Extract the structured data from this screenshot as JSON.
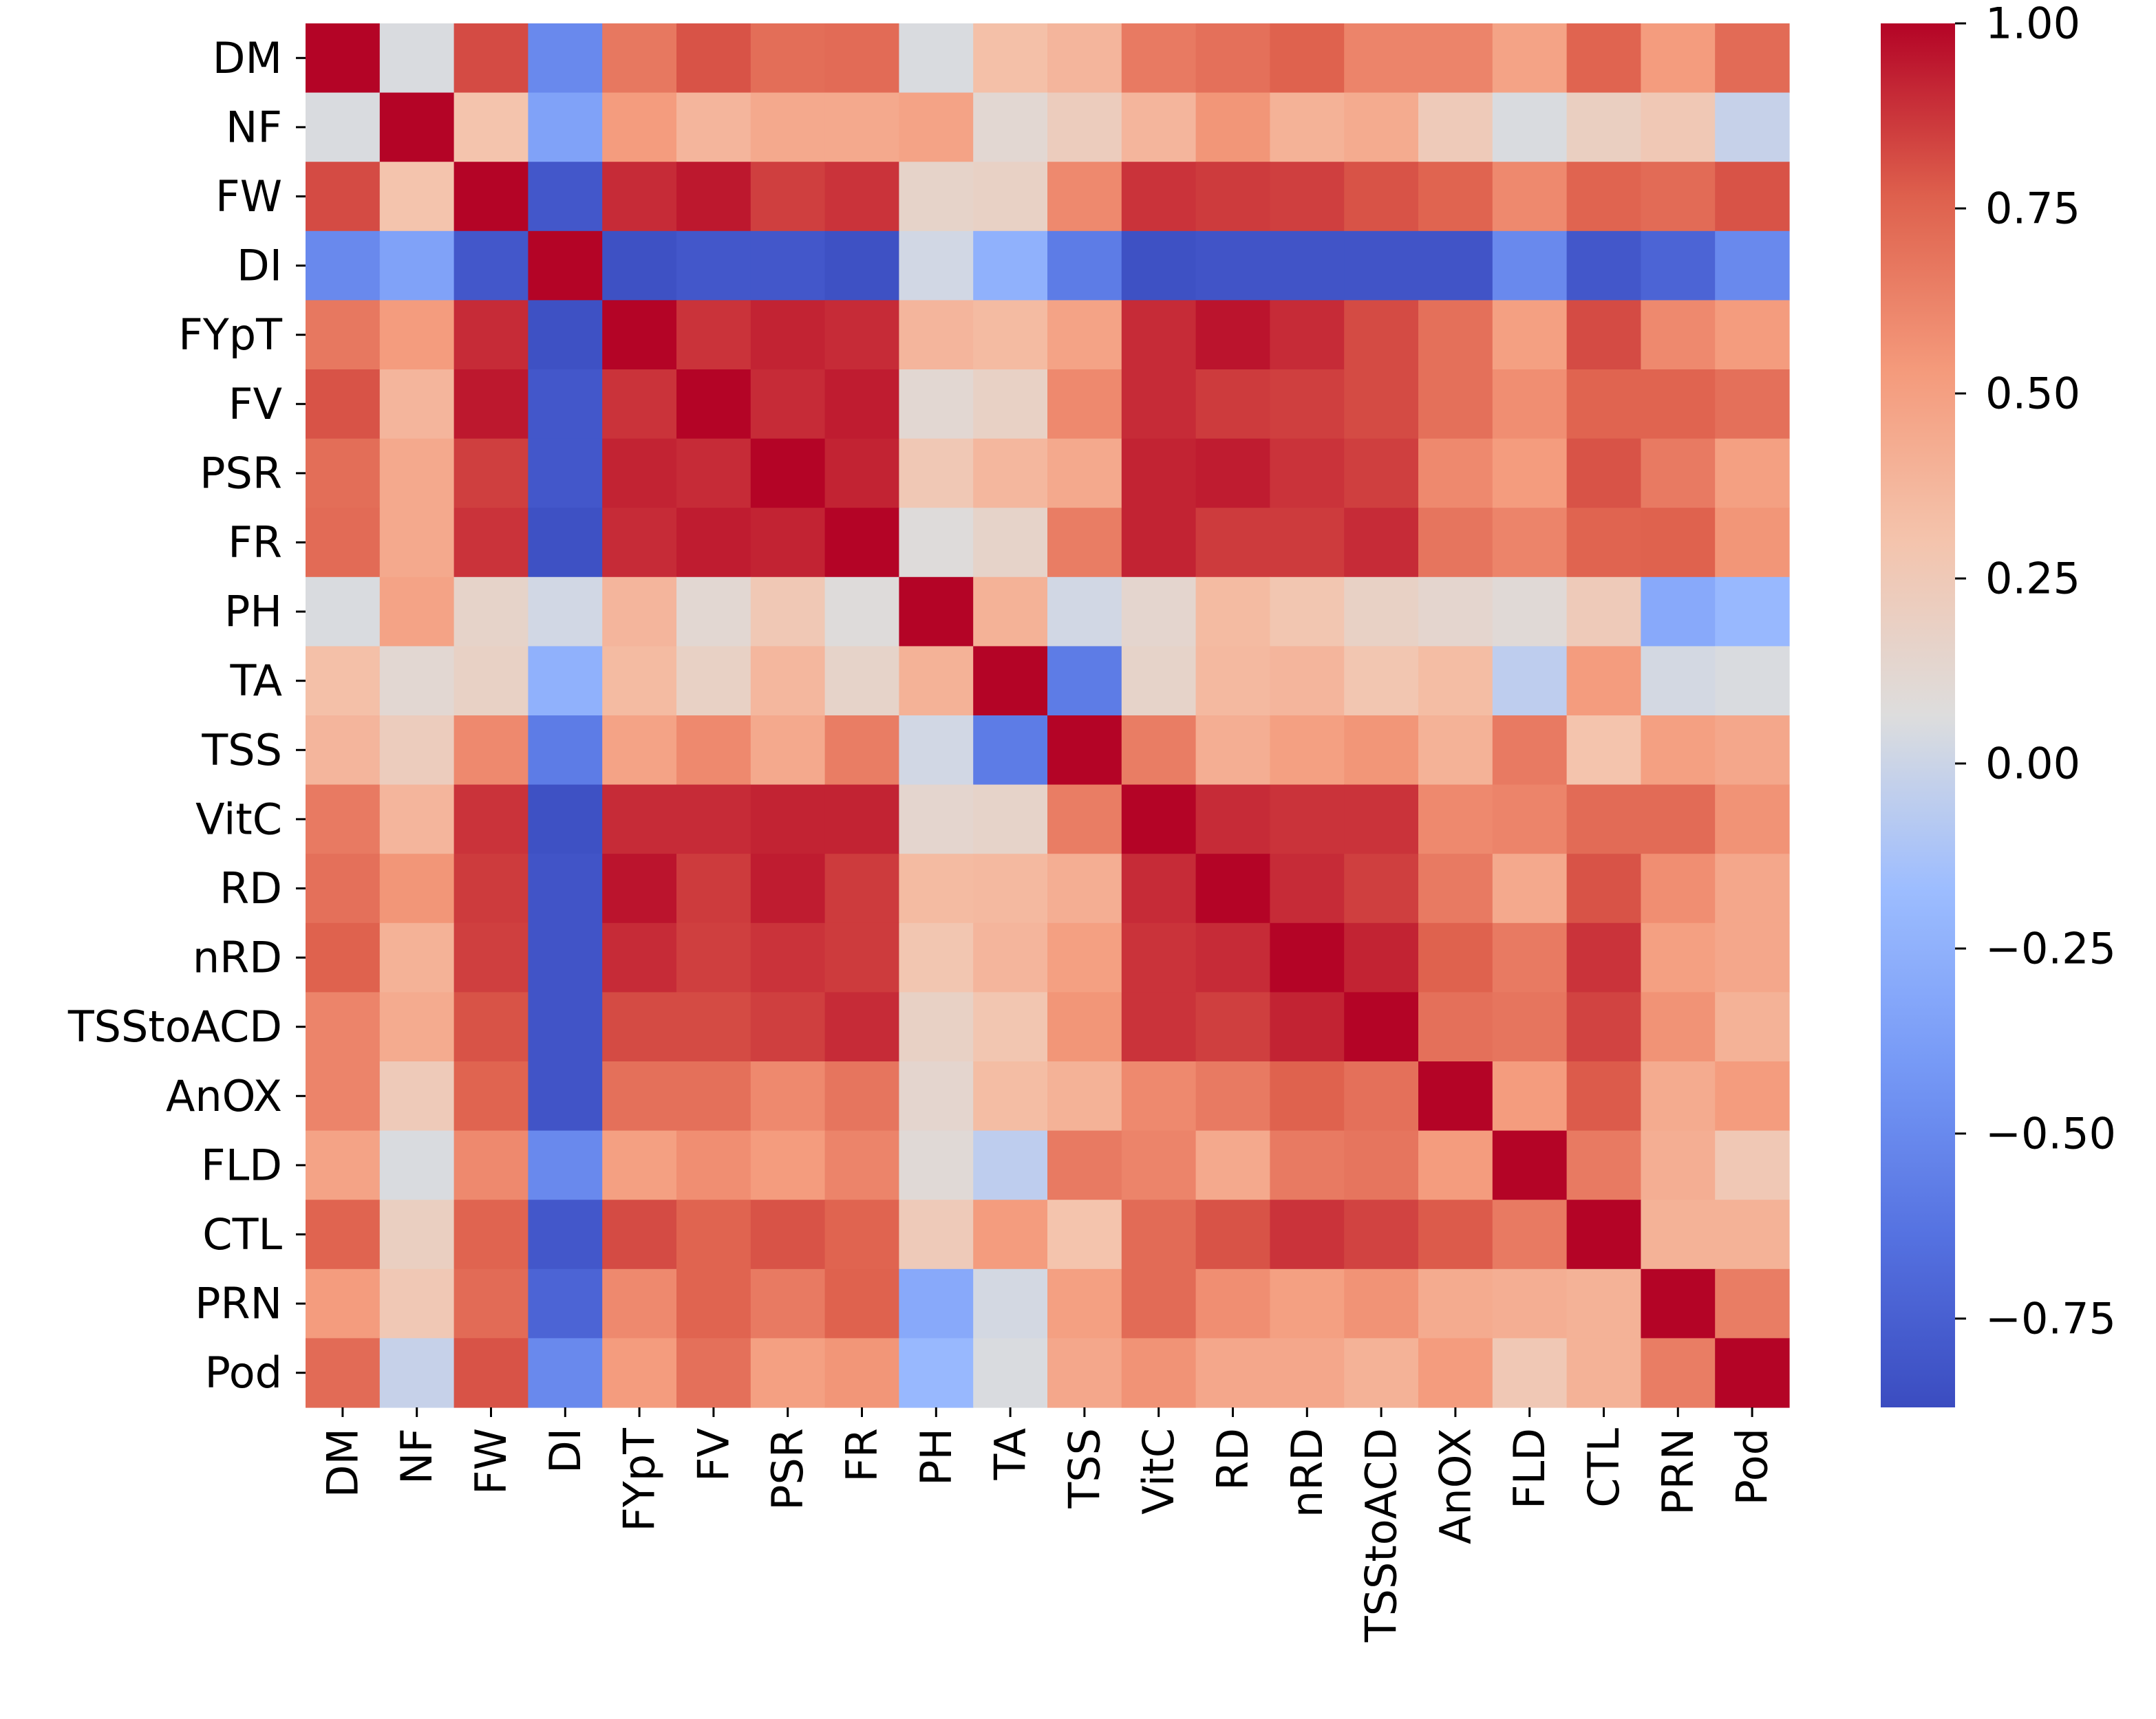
{
  "chart_data": {
    "type": "heatmap",
    "title": "",
    "xlabel": "",
    "ylabel": "",
    "labels": [
      "DM",
      "NF",
      "FW",
      "DI",
      "FYpT",
      "FV",
      "PSR",
      "FR",
      "PH",
      "TA",
      "TSS",
      "VitC",
      "RD",
      "nRD",
      "TSStoACD",
      "AnOX",
      "FLD",
      "CTL",
      "PRN",
      "Pod"
    ],
    "matrix": [
      [
        1.0,
        0.05,
        0.82,
        -0.5,
        0.67,
        0.8,
        0.71,
        0.72,
        0.05,
        0.32,
        0.38,
        0.66,
        0.7,
        0.76,
        0.62,
        0.62,
        0.48,
        0.75,
        0.52,
        0.72
      ],
      [
        0.05,
        1.0,
        0.3,
        -0.35,
        0.52,
        0.38,
        0.45,
        0.45,
        0.48,
        0.12,
        0.22,
        0.38,
        0.55,
        0.4,
        0.44,
        0.24,
        0.05,
        0.2,
        0.26,
        -0.02
      ],
      [
        0.82,
        0.3,
        1.0,
        -0.8,
        0.9,
        0.95,
        0.85,
        0.88,
        0.16,
        0.18,
        0.6,
        0.88,
        0.86,
        0.85,
        0.8,
        0.75,
        0.6,
        0.75,
        0.72,
        0.8
      ],
      [
        -0.5,
        -0.35,
        -0.8,
        1.0,
        -0.84,
        -0.8,
        -0.8,
        -0.84,
        0.02,
        -0.25,
        -0.58,
        -0.84,
        -0.82,
        -0.82,
        -0.82,
        -0.82,
        -0.5,
        -0.8,
        -0.72,
        -0.5
      ],
      [
        0.67,
        0.52,
        0.9,
        -0.84,
        1.0,
        0.88,
        0.92,
        0.9,
        0.38,
        0.35,
        0.48,
        0.9,
        0.96,
        0.9,
        0.82,
        0.7,
        0.5,
        0.82,
        0.6,
        0.52
      ],
      [
        0.8,
        0.38,
        0.95,
        -0.8,
        0.88,
        1.0,
        0.9,
        0.94,
        0.12,
        0.18,
        0.6,
        0.9,
        0.86,
        0.85,
        0.82,
        0.7,
        0.58,
        0.75,
        0.75,
        0.7
      ],
      [
        0.71,
        0.45,
        0.85,
        -0.8,
        0.92,
        0.9,
        1.0,
        0.92,
        0.26,
        0.37,
        0.45,
        0.92,
        0.94,
        0.88,
        0.85,
        0.6,
        0.52,
        0.8,
        0.66,
        0.5
      ],
      [
        0.72,
        0.45,
        0.88,
        -0.84,
        0.9,
        0.94,
        0.92,
        1.0,
        0.08,
        0.16,
        0.65,
        0.92,
        0.86,
        0.86,
        0.9,
        0.68,
        0.62,
        0.75,
        0.76,
        0.55
      ],
      [
        0.05,
        0.48,
        0.16,
        0.02,
        0.38,
        0.12,
        0.26,
        0.08,
        1.0,
        0.4,
        0.02,
        0.14,
        0.35,
        0.28,
        0.18,
        0.14,
        0.1,
        0.24,
        -0.3,
        -0.2
      ],
      [
        0.32,
        0.12,
        0.18,
        -0.25,
        0.35,
        0.18,
        0.37,
        0.16,
        0.4,
        1.0,
        -0.58,
        0.16,
        0.36,
        0.38,
        0.28,
        0.34,
        -0.05,
        0.52,
        0.03,
        0.05
      ],
      [
        0.38,
        0.22,
        0.6,
        -0.58,
        0.48,
        0.6,
        0.45,
        0.65,
        0.02,
        -0.58,
        1.0,
        0.65,
        0.42,
        0.5,
        0.55,
        0.4,
        0.66,
        0.3,
        0.5,
        0.46
      ],
      [
        0.66,
        0.38,
        0.88,
        -0.84,
        0.9,
        0.9,
        0.92,
        0.92,
        0.14,
        0.16,
        0.65,
        1.0,
        0.9,
        0.88,
        0.88,
        0.6,
        0.62,
        0.72,
        0.72,
        0.56
      ],
      [
        0.7,
        0.55,
        0.86,
        -0.82,
        0.96,
        0.86,
        0.94,
        0.86,
        0.35,
        0.36,
        0.42,
        0.9,
        1.0,
        0.9,
        0.85,
        0.66,
        0.45,
        0.8,
        0.58,
        0.46
      ],
      [
        0.76,
        0.4,
        0.85,
        -0.82,
        0.9,
        0.85,
        0.88,
        0.86,
        0.28,
        0.38,
        0.5,
        0.88,
        0.9,
        1.0,
        0.92,
        0.76,
        0.66,
        0.88,
        0.5,
        0.46
      ],
      [
        0.62,
        0.44,
        0.8,
        -0.82,
        0.82,
        0.82,
        0.85,
        0.9,
        0.18,
        0.28,
        0.55,
        0.88,
        0.85,
        0.92,
        1.0,
        0.7,
        0.68,
        0.84,
        0.56,
        0.4
      ],
      [
        0.62,
        0.24,
        0.75,
        -0.82,
        0.7,
        0.7,
        0.6,
        0.68,
        0.14,
        0.34,
        0.4,
        0.6,
        0.66,
        0.76,
        0.7,
        1.0,
        0.52,
        0.78,
        0.44,
        0.52
      ],
      [
        0.48,
        0.05,
        0.6,
        -0.5,
        0.5,
        0.58,
        0.52,
        0.62,
        0.1,
        -0.05,
        0.66,
        0.62,
        0.45,
        0.66,
        0.68,
        0.52,
        1.0,
        0.66,
        0.42,
        0.26
      ],
      [
        0.75,
        0.2,
        0.75,
        -0.8,
        0.82,
        0.75,
        0.8,
        0.75,
        0.24,
        0.52,
        0.3,
        0.72,
        0.8,
        0.88,
        0.84,
        0.78,
        0.66,
        1.0,
        0.4,
        0.4
      ],
      [
        0.52,
        0.26,
        0.72,
        -0.72,
        0.6,
        0.75,
        0.66,
        0.76,
        -0.3,
        0.03,
        0.5,
        0.72,
        0.58,
        0.5,
        0.56,
        0.44,
        0.42,
        0.4,
        1.0,
        0.65
      ],
      [
        0.72,
        -0.02,
        0.8,
        -0.5,
        0.52,
        0.7,
        0.5,
        0.55,
        -0.2,
        0.05,
        0.46,
        0.56,
        0.46,
        0.46,
        0.4,
        0.52,
        0.26,
        0.4,
        0.65,
        1.0
      ]
    ],
    "colormap": "coolwarm",
    "vmin": -0.87,
    "vmax": 1.0,
    "colorbar_ticks": [
      1.0,
      0.75,
      0.5,
      0.25,
      0.0,
      -0.25,
      -0.5,
      -0.75
    ],
    "colorbar_tick_labels": [
      "1.00",
      "0.75",
      "0.50",
      "0.25",
      "0.00",
      "−0.25",
      "−0.50",
      "−0.75"
    ]
  }
}
